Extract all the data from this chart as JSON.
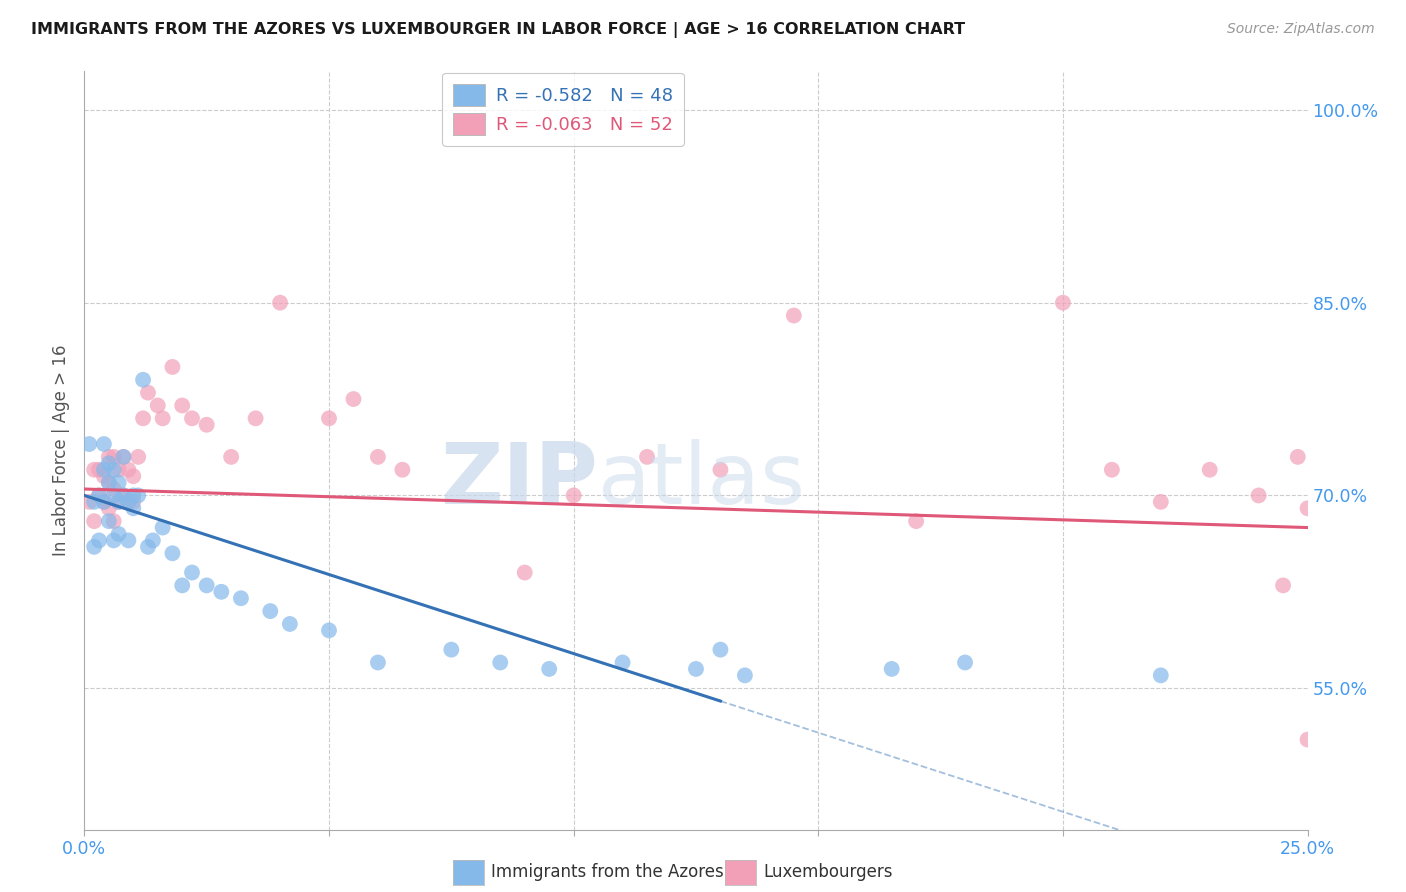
{
  "title": "IMMIGRANTS FROM THE AZORES VS LUXEMBOURGER IN LABOR FORCE | AGE > 16 CORRELATION CHART",
  "source_text": "Source: ZipAtlas.com",
  "ylabel": "In Labor Force | Age > 16",
  "ytick_values": [
    1.0,
    0.85,
    0.7,
    0.55
  ],
  "ytick_labels": [
    "100.0%",
    "85.0%",
    "70.0%",
    "55.0%"
  ],
  "xlim": [
    0.0,
    0.25
  ],
  "ylim": [
    0.44,
    1.03
  ],
  "legend_r1": "-0.582",
  "legend_n1": "48",
  "legend_r2": "-0.063",
  "legend_n2": "52",
  "color_blue": "#85B9EA",
  "color_pink": "#F2A0B8",
  "line_color_blue": "#3472B5",
  "line_color_pink": "#E05878",
  "watermark_zip": "ZIP",
  "watermark_atlas": "atlas",
  "azores_x": [
    0.001,
    0.002,
    0.002,
    0.003,
    0.003,
    0.004,
    0.004,
    0.004,
    0.005,
    0.005,
    0.005,
    0.006,
    0.006,
    0.006,
    0.007,
    0.007,
    0.007,
    0.008,
    0.008,
    0.009,
    0.009,
    0.01,
    0.01,
    0.011,
    0.012,
    0.013,
    0.014,
    0.016,
    0.018,
    0.02,
    0.022,
    0.025,
    0.028,
    0.032,
    0.038,
    0.042,
    0.05,
    0.06,
    0.075,
    0.085,
    0.095,
    0.11,
    0.125,
    0.13,
    0.135,
    0.165,
    0.18,
    0.22
  ],
  "azores_y": [
    0.74,
    0.695,
    0.66,
    0.7,
    0.665,
    0.72,
    0.695,
    0.74,
    0.725,
    0.71,
    0.68,
    0.72,
    0.7,
    0.665,
    0.71,
    0.695,
    0.67,
    0.73,
    0.7,
    0.695,
    0.665,
    0.7,
    0.69,
    0.7,
    0.79,
    0.66,
    0.665,
    0.675,
    0.655,
    0.63,
    0.64,
    0.63,
    0.625,
    0.62,
    0.61,
    0.6,
    0.595,
    0.57,
    0.58,
    0.57,
    0.565,
    0.57,
    0.565,
    0.58,
    0.56,
    0.565,
    0.57,
    0.56
  ],
  "lux_x": [
    0.001,
    0.002,
    0.002,
    0.003,
    0.003,
    0.004,
    0.004,
    0.005,
    0.005,
    0.005,
    0.006,
    0.006,
    0.006,
    0.007,
    0.007,
    0.008,
    0.008,
    0.009,
    0.009,
    0.01,
    0.01,
    0.011,
    0.012,
    0.013,
    0.015,
    0.016,
    0.018,
    0.02,
    0.022,
    0.025,
    0.03,
    0.035,
    0.04,
    0.05,
    0.055,
    0.06,
    0.065,
    0.09,
    0.1,
    0.115,
    0.13,
    0.145,
    0.17,
    0.2,
    0.21,
    0.22,
    0.23,
    0.24,
    0.245,
    0.248,
    0.25,
    0.25
  ],
  "lux_y": [
    0.695,
    0.72,
    0.68,
    0.7,
    0.72,
    0.715,
    0.695,
    0.71,
    0.73,
    0.69,
    0.73,
    0.705,
    0.68,
    0.72,
    0.695,
    0.73,
    0.7,
    0.72,
    0.695,
    0.715,
    0.695,
    0.73,
    0.76,
    0.78,
    0.77,
    0.76,
    0.8,
    0.77,
    0.76,
    0.755,
    0.73,
    0.76,
    0.85,
    0.76,
    0.775,
    0.73,
    0.72,
    0.64,
    0.7,
    0.73,
    0.72,
    0.84,
    0.68,
    0.85,
    0.72,
    0.695,
    0.72,
    0.7,
    0.63,
    0.73,
    0.69,
    0.51
  ]
}
